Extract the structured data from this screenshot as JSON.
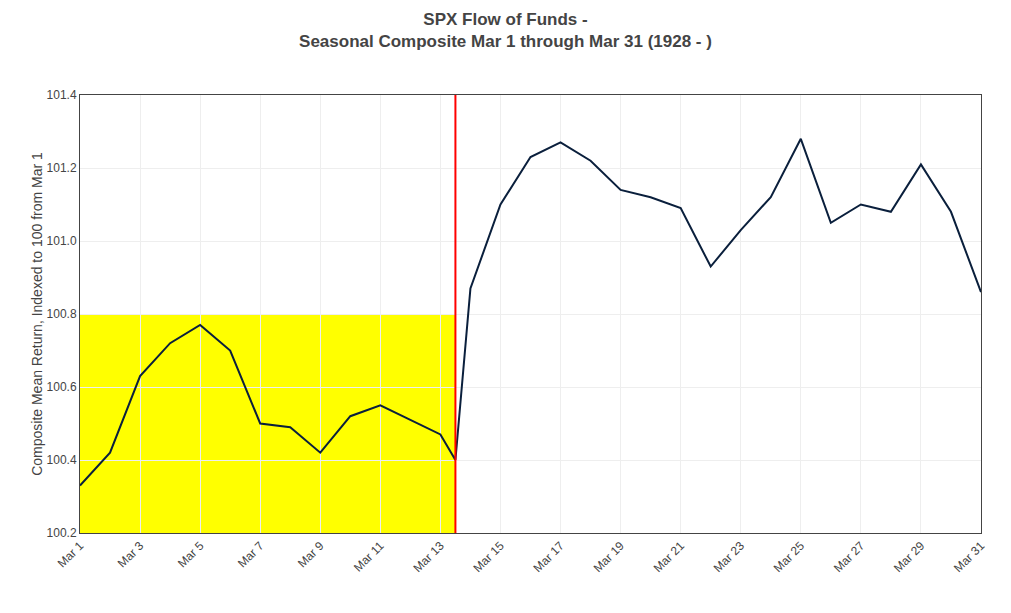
{
  "chart_data": {
    "type": "line",
    "title": "SPX Flow of Funds -",
    "subtitle": "Seasonal Composite Mar 1 through Mar 31 (1928 - )",
    "ylabel": "Composite Mean Return, Indexed to 100 from Mar 1",
    "x": [
      1,
      2,
      3,
      4,
      5,
      6,
      7,
      8,
      9,
      10,
      11,
      12,
      13,
      13.5,
      14,
      15,
      16,
      17,
      18,
      19,
      20,
      21,
      22,
      23,
      24,
      25,
      26,
      27,
      28,
      29,
      30,
      31
    ],
    "values": [
      100.33,
      100.42,
      100.63,
      100.72,
      100.77,
      100.7,
      100.5,
      100.49,
      100.42,
      100.52,
      100.55,
      100.51,
      100.47,
      100.4,
      100.87,
      101.1,
      101.23,
      101.27,
      101.22,
      101.14,
      101.12,
      101.09,
      100.93,
      101.03,
      101.12,
      101.28,
      101.05,
      101.1,
      101.08,
      101.21,
      101.08,
      100.86
    ],
    "color": "#0a1f3c",
    "xlim": [
      1,
      31
    ],
    "xticks": [
      {
        "value": 1,
        "label": "Mar 1"
      },
      {
        "value": 3,
        "label": "Mar 3"
      },
      {
        "value": 5,
        "label": "Mar 5"
      },
      {
        "value": 7,
        "label": "Mar 7"
      },
      {
        "value": 9,
        "label": "Mar 9"
      },
      {
        "value": 11,
        "label": "Mar 11"
      },
      {
        "value": 13,
        "label": "Mar 13"
      },
      {
        "value": 15,
        "label": "Mar 15"
      },
      {
        "value": 17,
        "label": "Mar 17"
      },
      {
        "value": 19,
        "label": "Mar 19"
      },
      {
        "value": 21,
        "label": "Mar 21"
      },
      {
        "value": 23,
        "label": "Mar 23"
      },
      {
        "value": 25,
        "label": "Mar 25"
      },
      {
        "value": 27,
        "label": "Mar 27"
      },
      {
        "value": 29,
        "label": "Mar 29"
      },
      {
        "value": 31,
        "label": "Mar 31"
      }
    ],
    "ylim": [
      100.2,
      101.4
    ],
    "yticks": [
      100.2,
      100.4,
      100.6,
      100.8,
      {
        "value": 101.0,
        "label": "101.0"
      },
      101.2,
      101.4
    ],
    "grid": true,
    "highlight": {
      "x": [
        1,
        13.5
      ],
      "y": [
        100.2,
        100.8
      ],
      "color": "#ffff00"
    },
    "vline": {
      "x": 13.5,
      "color": "red"
    }
  }
}
